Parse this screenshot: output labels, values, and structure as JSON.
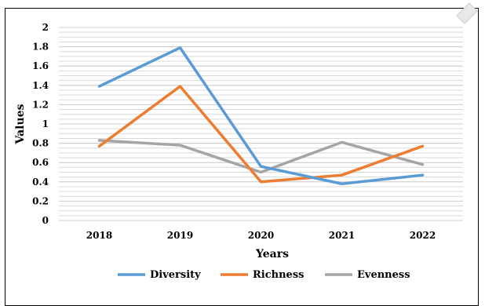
{
  "chart_data": {
    "type": "line",
    "title": "",
    "xlabel": "Years",
    "ylabel": "Values",
    "categories": [
      "2018",
      "2019",
      "2020",
      "2021",
      "2022"
    ],
    "ylim": [
      0,
      2
    ],
    "yticks": [
      "0",
      "0.2",
      "0.4",
      "0.6",
      "0.8",
      "1",
      "1.2",
      "1.4",
      "1.6",
      "1.8",
      "2"
    ],
    "grid": true,
    "legend_position": "bottom",
    "series": [
      {
        "name": "Diversity",
        "color": "#5b9bd5",
        "values": [
          1.39,
          1.79,
          0.56,
          0.38,
          0.47
        ]
      },
      {
        "name": "Richness",
        "color": "#ed7d31",
        "values": [
          0.77,
          1.39,
          0.4,
          0.47,
          0.77
        ]
      },
      {
        "name": "Evenness",
        "color": "#a5a5a5",
        "values": [
          0.83,
          0.78,
          0.5,
          0.81,
          0.58
        ]
      }
    ]
  }
}
